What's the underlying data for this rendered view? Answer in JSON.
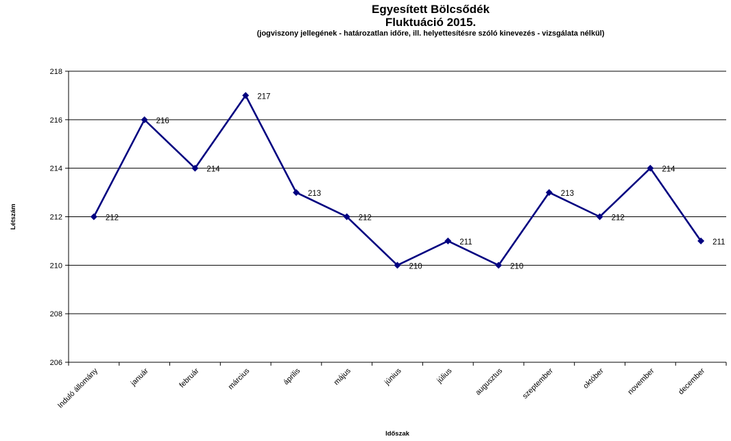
{
  "chart_data": {
    "type": "line",
    "title": "Egyesített Bölcsődék",
    "title_line2": "Fluktuáció 2015.",
    "subtitle": "(jogviszony jellegének - határozatlan időre, ill. helyettesítésre szóló kinevezés - vizsgálata nélkül)",
    "xlabel": "Időszak",
    "ylabel": "Létszám",
    "ylim": [
      206,
      218
    ],
    "yticks": [
      206,
      208,
      210,
      212,
      214,
      216,
      218
    ],
    "grid": true,
    "legend": "none",
    "line_color": "#000080",
    "categories": [
      "Induló állomány",
      "január",
      "február",
      "március",
      "április",
      "május",
      "június",
      "július",
      "augusztus",
      "szeptember",
      "október",
      "november",
      "december"
    ],
    "series": [
      {
        "values": [
          212,
          216,
          214,
          217,
          213,
          212,
          210,
          211,
          210,
          213,
          212,
          214,
          211
        ]
      }
    ]
  }
}
